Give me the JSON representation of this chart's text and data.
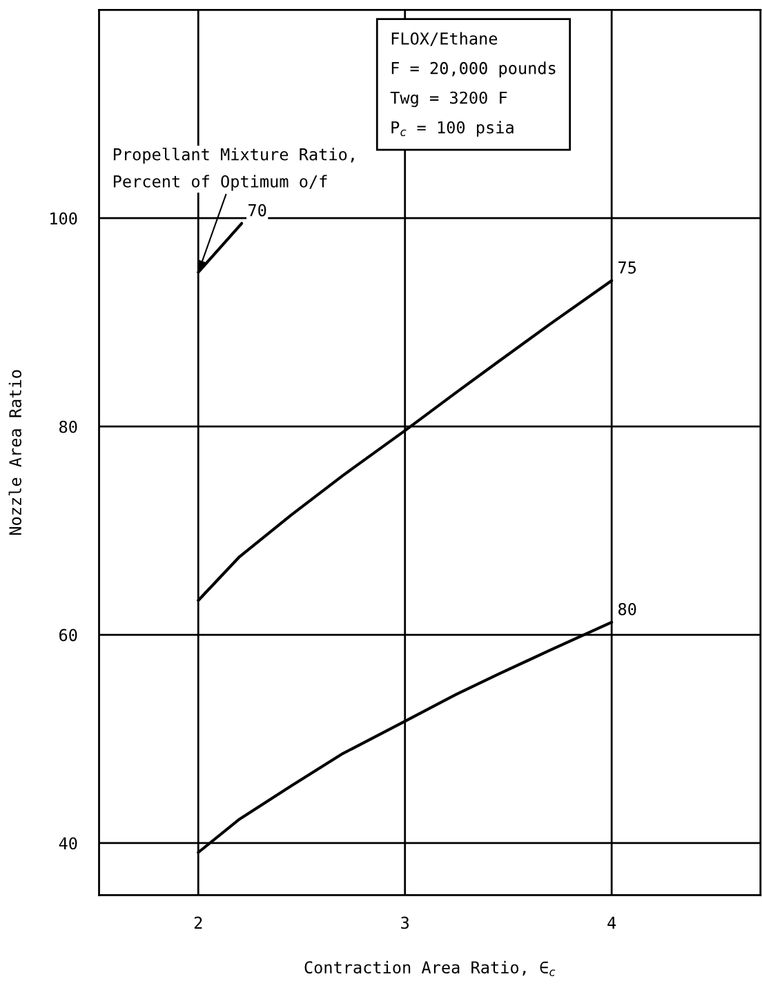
{
  "chart_data": {
    "type": "line",
    "xlabel": "Contraction Area Ratio, ∈$_{c}$",
    "ylabel": "Nozzle Area Ratio",
    "xlim": [
      1.52,
      4.72
    ],
    "ylim": [
      35,
      120
    ],
    "xticks": [
      2,
      3,
      4
    ],
    "yticks": [
      40,
      60,
      80,
      100
    ],
    "grid": true,
    "line_style": "solid",
    "marker": "none",
    "series": [
      {
        "color": "#000000",
        "x": [
          2.0,
          2.21
        ],
        "values": [
          94.8,
          99.5
        ]
      },
      {
        "color": "#000000",
        "x": [
          2.0,
          2.2,
          2.45,
          2.7,
          3.0,
          3.25,
          3.45,
          3.7,
          4.0
        ],
        "values": [
          63.3,
          67.5,
          71.5,
          75.3,
          79.6,
          83.3,
          86.2,
          89.8,
          94.0
        ]
      },
      {
        "color": "#000000",
        "x": [
          2.0,
          2.2,
          2.45,
          2.7,
          3.0,
          3.25,
          3.45,
          3.7,
          4.0
        ],
        "values": [
          39.1,
          42.3,
          45.5,
          48.6,
          51.7,
          54.3,
          56.2,
          58.5,
          61.2
        ]
      }
    ],
    "annotations": [
      {
        "text": "Propellant Mixture Ratio,\nPercent of Optimum o/f",
        "x": 2.0,
        "y": 94.8
      },
      {
        "text": "70",
        "x": 2.21,
        "y": 99.5
      },
      {
        "text": "75",
        "x": 4.0,
        "y": 94.0
      },
      {
        "text": "80",
        "x": 4.0,
        "y": 61.2
      },
      "FLOX/Ethane",
      "F = 20,000 pounds",
      "Twg = 3200 F",
      "P$_{c}$ = 100 psia"
    ]
  }
}
